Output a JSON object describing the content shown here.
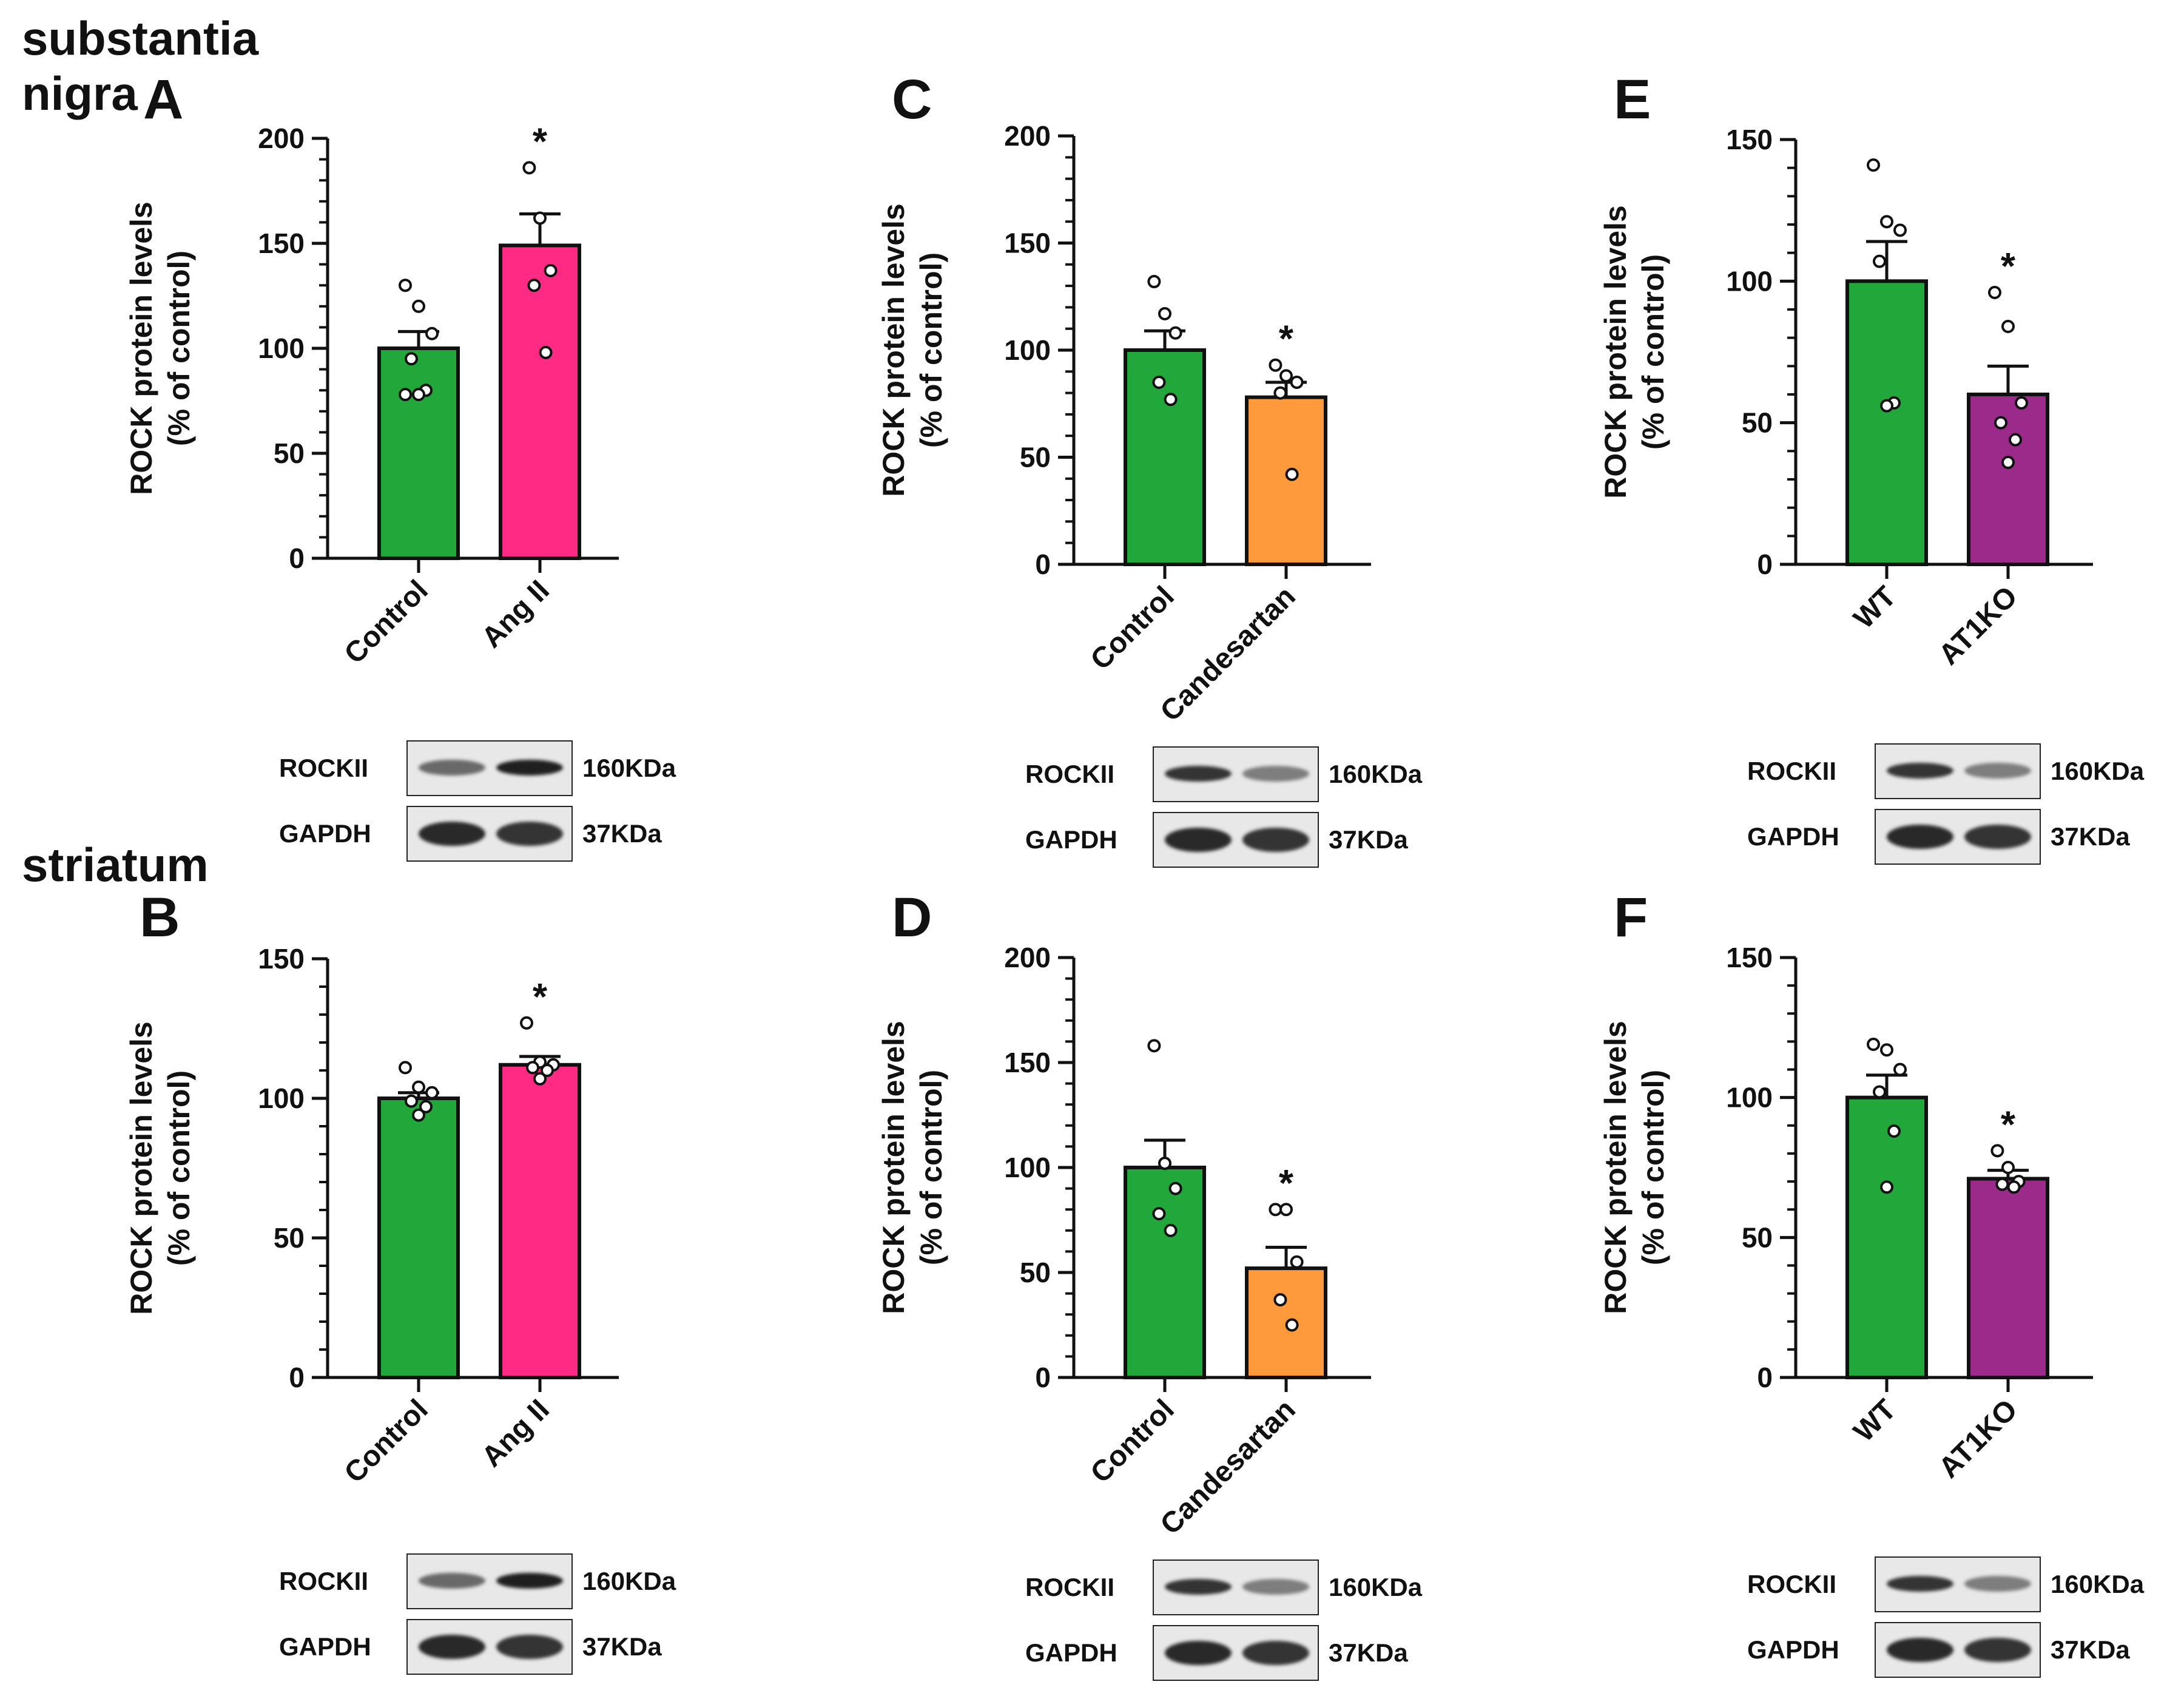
{
  "figure": {
    "sections": {
      "top": "substantia nigra",
      "bottom": "striatum"
    },
    "bar_colors": {
      "control": "#22a83a",
      "angii": "#ff2a84",
      "candesartan": "#ff9a3c",
      "at1ko": "#9b2a8a"
    }
  },
  "chart_data": [
    {
      "panel": "A",
      "type": "bar",
      "region": "substantia nigra",
      "ylabel_line1": "ROCK protein levels",
      "ylabel_line2": "(% of control)",
      "ylim": [
        0,
        200
      ],
      "yticks": [
        0,
        50,
        100,
        150,
        200
      ],
      "categories": [
        "Control",
        "Ang II"
      ],
      "values": [
        100,
        149
      ],
      "sem": [
        8,
        15
      ],
      "colors": [
        "#22a83a",
        "#ff2a84"
      ],
      "points": [
        [
          130,
          120,
          107,
          95,
          80,
          78,
          78
        ],
        [
          186,
          162,
          137,
          130,
          98
        ]
      ],
      "significance": [
        "",
        "*"
      ],
      "blot": {
        "labels": [
          "ROCKII",
          "GAPDH"
        ],
        "sizes": [
          "160KDa",
          "37KDa"
        ]
      }
    },
    {
      "panel": "B",
      "type": "bar",
      "region": "striatum",
      "ylabel_line1": "ROCK protein levels",
      "ylabel_line2": "(% of control)",
      "ylim": [
        0,
        150
      ],
      "yticks": [
        0,
        50,
        100,
        150
      ],
      "categories": [
        "Control",
        "Ang II"
      ],
      "values": [
        100,
        112
      ],
      "sem": [
        2,
        3
      ],
      "colors": [
        "#22a83a",
        "#ff2a84"
      ],
      "points": [
        [
          111,
          104,
          102,
          99,
          97,
          94
        ],
        [
          127,
          113,
          112,
          111,
          110,
          107
        ]
      ],
      "significance": [
        "",
        "*"
      ],
      "blot": {
        "labels": [
          "ROCKII",
          "GAPDH"
        ],
        "sizes": [
          "160KDa",
          "37KDa"
        ]
      }
    },
    {
      "panel": "C",
      "type": "bar",
      "region": "substantia nigra",
      "ylabel_line1": "ROCK protein levels",
      "ylabel_line2": "(% of control)",
      "ylim": [
        0,
        200
      ],
      "yticks": [
        0,
        50,
        100,
        150,
        200
      ],
      "categories": [
        "Control",
        "Candesartan"
      ],
      "values": [
        100,
        78
      ],
      "sem": [
        9,
        7
      ],
      "colors": [
        "#22a83a",
        "#ff9a3c"
      ],
      "points": [
        [
          132,
          117,
          108,
          85,
          77
        ],
        [
          93,
          88,
          85,
          80,
          42
        ]
      ],
      "significance": [
        "",
        "*"
      ],
      "blot": {
        "labels": [
          "ROCKII",
          "GAPDH"
        ],
        "sizes": [
          "160KDa",
          "37KDa"
        ]
      }
    },
    {
      "panel": "D",
      "type": "bar",
      "region": "striatum",
      "ylabel_line1": "ROCK protein levels",
      "ylabel_line2": "(% of control)",
      "ylim": [
        0,
        200
      ],
      "yticks": [
        0,
        50,
        100,
        150,
        200
      ],
      "categories": [
        "Control",
        "Candesartan"
      ],
      "values": [
        100,
        52
      ],
      "sem": [
        13,
        10
      ],
      "colors": [
        "#22a83a",
        "#ff9a3c"
      ],
      "points": [
        [
          158,
          102,
          90,
          78,
          70
        ],
        [
          80,
          80,
          55,
          37,
          25
        ]
      ],
      "significance": [
        "",
        "*"
      ],
      "blot": {
        "labels": [
          "ROCKII",
          "GAPDH"
        ],
        "sizes": [
          "160KDa",
          "37KDa"
        ]
      }
    },
    {
      "panel": "E",
      "type": "bar",
      "region": "substantia nigra",
      "ylabel_line1": "ROCK protein levels",
      "ylabel_line2": "(% of control)",
      "ylim": [
        0,
        150
      ],
      "yticks": [
        0,
        50,
        100,
        150
      ],
      "categories": [
        "WT",
        "AT1KO"
      ],
      "values": [
        100,
        60
      ],
      "sem": [
        14,
        10
      ],
      "colors": [
        "#22a83a",
        "#9b2a8a"
      ],
      "points": [
        [
          141,
          121,
          118,
          107,
          57,
          56
        ],
        [
          96,
          84,
          57,
          50,
          44,
          36
        ]
      ],
      "significance": [
        "",
        "*"
      ],
      "blot": {
        "labels": [
          "ROCKII",
          "GAPDH"
        ],
        "sizes": [
          "160KDa",
          "37KDa"
        ]
      }
    },
    {
      "panel": "F",
      "type": "bar",
      "region": "striatum",
      "ylabel_line1": "ROCK protein levels",
      "ylabel_line2": "(% of control)",
      "ylim": [
        0,
        150
      ],
      "yticks": [
        0,
        50,
        100,
        150
      ],
      "categories": [
        "WT",
        "AT1KO"
      ],
      "values": [
        100,
        71
      ],
      "sem": [
        8,
        3
      ],
      "colors": [
        "#22a83a",
        "#9b2a8a"
      ],
      "points": [
        [
          119,
          117,
          110,
          102,
          88,
          68
        ],
        [
          81,
          75,
          70,
          69,
          68
        ]
      ],
      "significance": [
        "",
        "*"
      ],
      "blot": {
        "labels": [
          "ROCKII",
          "GAPDH"
        ],
        "sizes": [
          "160KDa",
          "37KDa"
        ]
      }
    }
  ]
}
